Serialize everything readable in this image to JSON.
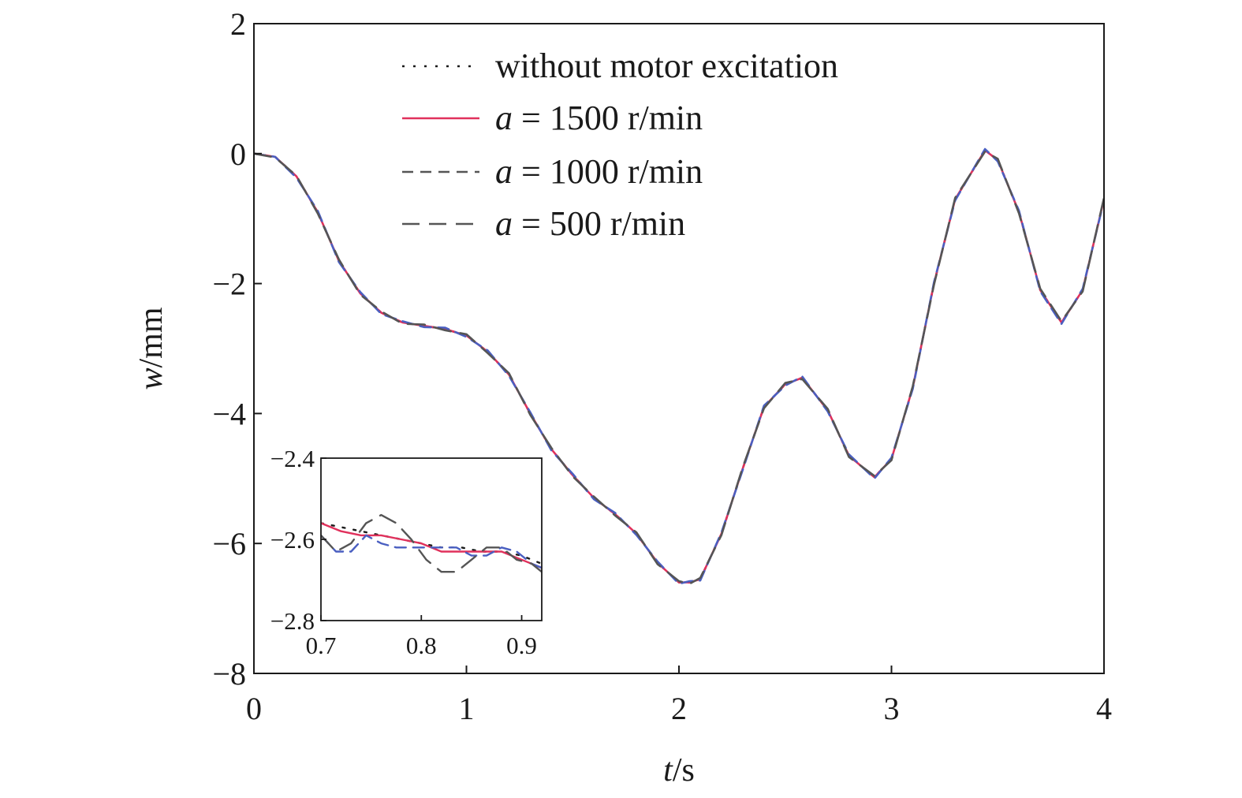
{
  "chart_data": [
    {
      "type": "line",
      "xlabel": {
        "var": "t",
        "unit": "/s"
      },
      "ylabel": {
        "var": "w",
        "unit": "/mm"
      },
      "xlim": [
        0,
        4
      ],
      "ylim": [
        -8,
        2
      ],
      "xticks": [
        0,
        1,
        2,
        3,
        4
      ],
      "yticks": [
        -8,
        -6,
        -4,
        -2,
        0,
        2
      ],
      "xtick_labels": [
        "0",
        "1",
        "2",
        "3",
        "4"
      ],
      "ytick_labels": [
        "−8",
        "−6",
        "−4",
        "−2",
        "0",
        "2"
      ],
      "grid": false,
      "legend_position": "top",
      "legend": [
        {
          "text": "without motor excitation"
        },
        {
          "var": "a",
          "text": " = 1500 r/min"
        },
        {
          "var": "a",
          "text": " = 1000 r/min"
        },
        {
          "var": "a",
          "text": " = 500 r/min"
        }
      ],
      "series": [
        {
          "name": "without motor excitation",
          "color": "#1a1a1a",
          "dash": "dotted",
          "x": [
            0,
            0.1,
            0.2,
            0.3,
            0.4,
            0.5,
            0.6,
            0.7,
            0.8,
            0.9,
            1.0,
            1.1,
            1.2,
            1.3,
            1.4,
            1.5,
            1.6,
            1.7,
            1.8,
            1.9,
            2.0,
            2.05,
            2.1,
            2.2,
            2.3,
            2.4,
            2.5,
            2.58,
            2.7,
            2.8,
            2.92,
            3.0,
            3.1,
            3.2,
            3.3,
            3.44,
            3.5,
            3.6,
            3.7,
            3.8,
            3.9,
            4.0
          ],
          "y": [
            0,
            -0.05,
            -0.35,
            -0.9,
            -1.65,
            -2.15,
            -2.45,
            -2.6,
            -2.65,
            -2.7,
            -2.8,
            -3.05,
            -3.4,
            -4.0,
            -4.55,
            -4.95,
            -5.3,
            -5.55,
            -5.85,
            -6.3,
            -6.6,
            -6.6,
            -6.55,
            -5.85,
            -4.85,
            -3.9,
            -3.55,
            -3.45,
            -3.95,
            -4.65,
            -4.98,
            -4.7,
            -3.6,
            -2.0,
            -0.7,
            0.05,
            -0.1,
            -0.9,
            -2.1,
            -2.6,
            -2.1,
            -0.7
          ]
        },
        {
          "name": "a = 1500 r/min",
          "color": "#e0315c",
          "dash": "solid",
          "x": [
            0,
            0.1,
            0.2,
            0.3,
            0.4,
            0.5,
            0.6,
            0.7,
            0.8,
            0.9,
            1.0,
            1.1,
            1.2,
            1.3,
            1.4,
            1.5,
            1.6,
            1.7,
            1.8,
            1.9,
            2.0,
            2.05,
            2.1,
            2.2,
            2.3,
            2.4,
            2.5,
            2.58,
            2.7,
            2.8,
            2.92,
            3.0,
            3.1,
            3.2,
            3.3,
            3.44,
            3.5,
            3.6,
            3.7,
            3.8,
            3.9,
            4.0
          ],
          "y": [
            0,
            -0.05,
            -0.35,
            -0.9,
            -1.65,
            -2.15,
            -2.45,
            -2.6,
            -2.65,
            -2.7,
            -2.8,
            -3.05,
            -3.4,
            -4.0,
            -4.55,
            -4.95,
            -5.3,
            -5.55,
            -5.85,
            -6.3,
            -6.6,
            -6.6,
            -6.55,
            -5.85,
            -4.85,
            -3.9,
            -3.55,
            -3.45,
            -3.95,
            -4.65,
            -4.98,
            -4.7,
            -3.6,
            -2.0,
            -0.7,
            0.05,
            -0.1,
            -0.9,
            -2.1,
            -2.6,
            -2.1,
            -0.7
          ]
        },
        {
          "name": "a = 1000 r/min",
          "color": "#4a5fc1",
          "dash": "dashed",
          "x": [
            0,
            0.1,
            0.2,
            0.3,
            0.4,
            0.5,
            0.6,
            0.7,
            0.8,
            0.9,
            1.0,
            1.1,
            1.2,
            1.3,
            1.4,
            1.5,
            1.6,
            1.7,
            1.8,
            1.9,
            2.0,
            2.05,
            2.1,
            2.2,
            2.3,
            2.4,
            2.5,
            2.58,
            2.7,
            2.8,
            2.92,
            3.0,
            3.1,
            3.2,
            3.3,
            3.44,
            3.5,
            3.6,
            3.7,
            3.8,
            3.9,
            4.0
          ],
          "y": [
            0,
            -0.05,
            -0.37,
            -0.88,
            -1.67,
            -2.13,
            -2.47,
            -2.58,
            -2.67,
            -2.68,
            -2.82,
            -3.03,
            -3.42,
            -3.98,
            -4.57,
            -4.93,
            -5.32,
            -5.53,
            -5.87,
            -6.28,
            -6.62,
            -6.58,
            -6.57,
            -5.83,
            -4.87,
            -3.88,
            -3.57,
            -3.43,
            -3.97,
            -4.63,
            -5.0,
            -4.68,
            -3.62,
            -1.98,
            -0.72,
            0.07,
            -0.12,
            -0.88,
            -2.12,
            -2.62,
            -2.08,
            -0.72
          ]
        },
        {
          "name": "a = 500 r/min",
          "color": "#555555",
          "dash": "longdash",
          "x": [
            0,
            0.1,
            0.2,
            0.3,
            0.4,
            0.5,
            0.6,
            0.7,
            0.8,
            0.9,
            1.0,
            1.1,
            1.2,
            1.3,
            1.4,
            1.5,
            1.6,
            1.7,
            1.8,
            1.9,
            2.0,
            2.05,
            2.1,
            2.2,
            2.3,
            2.4,
            2.5,
            2.58,
            2.7,
            2.8,
            2.92,
            3.0,
            3.1,
            3.2,
            3.3,
            3.44,
            3.5,
            3.6,
            3.7,
            3.8,
            3.9,
            4.0
          ],
          "y": [
            0,
            -0.06,
            -0.34,
            -0.92,
            -1.63,
            -2.17,
            -2.43,
            -2.62,
            -2.63,
            -2.72,
            -2.78,
            -3.07,
            -3.38,
            -4.02,
            -4.53,
            -4.97,
            -5.28,
            -5.57,
            -5.83,
            -6.32,
            -6.58,
            -6.62,
            -6.53,
            -5.87,
            -4.83,
            -3.92,
            -3.53,
            -3.47,
            -3.93,
            -4.67,
            -4.96,
            -4.72,
            -3.58,
            -2.02,
            -0.68,
            0.03,
            -0.08,
            -0.92,
            -2.08,
            -2.58,
            -2.12,
            -0.68
          ]
        }
      ]
    },
    {
      "type": "line",
      "xlim": [
        0.7,
        0.92
      ],
      "ylim": [
        -2.8,
        -2.4
      ],
      "xticks": [
        0.7,
        0.8,
        0.9
      ],
      "yticks": [
        -2.8,
        -2.6,
        -2.4
      ],
      "xtick_labels": [
        "0.7",
        "0.8",
        "0.9"
      ],
      "ytick_labels": [
        "−2.8",
        "−2.6",
        "−2.4"
      ],
      "grid": false,
      "series": [
        {
          "name": "without motor excitation",
          "color": "#1a1a1a",
          "dash": "dotted",
          "x": [
            0.7,
            0.72,
            0.74,
            0.76,
            0.78,
            0.8,
            0.82,
            0.84,
            0.86,
            0.88,
            0.9,
            0.92
          ],
          "y": [
            -2.56,
            -2.57,
            -2.58,
            -2.59,
            -2.6,
            -2.61,
            -2.62,
            -2.62,
            -2.63,
            -2.63,
            -2.64,
            -2.66
          ]
        },
        {
          "name": "a = 1500 r/min",
          "color": "#e0315c",
          "dash": "solid",
          "x": [
            0.7,
            0.72,
            0.74,
            0.76,
            0.78,
            0.8,
            0.82,
            0.84,
            0.86,
            0.88,
            0.9,
            0.92
          ],
          "y": [
            -2.56,
            -2.58,
            -2.59,
            -2.59,
            -2.6,
            -2.61,
            -2.63,
            -2.63,
            -2.63,
            -2.63,
            -2.65,
            -2.67
          ]
        },
        {
          "name": "a = 1000 r/min",
          "color": "#4a5fc1",
          "dash": "dashed",
          "x": [
            0.7,
            0.715,
            0.73,
            0.745,
            0.76,
            0.775,
            0.79,
            0.805,
            0.82,
            0.835,
            0.85,
            0.865,
            0.88,
            0.895,
            0.91,
            0.92
          ],
          "y": [
            -2.59,
            -2.63,
            -2.63,
            -2.59,
            -2.61,
            -2.62,
            -2.62,
            -2.62,
            -2.62,
            -2.62,
            -2.64,
            -2.64,
            -2.62,
            -2.63,
            -2.66,
            -2.67
          ]
        },
        {
          "name": "a = 500 r/min",
          "color": "#555555",
          "dash": "longdash",
          "x": [
            0.7,
            0.715,
            0.73,
            0.745,
            0.76,
            0.775,
            0.79,
            0.805,
            0.82,
            0.835,
            0.85,
            0.865,
            0.88,
            0.895,
            0.91,
            0.92
          ],
          "y": [
            -2.59,
            -2.63,
            -2.61,
            -2.56,
            -2.54,
            -2.56,
            -2.6,
            -2.65,
            -2.68,
            -2.68,
            -2.65,
            -2.62,
            -2.62,
            -2.65,
            -2.66,
            -2.68
          ]
        }
      ]
    }
  ]
}
